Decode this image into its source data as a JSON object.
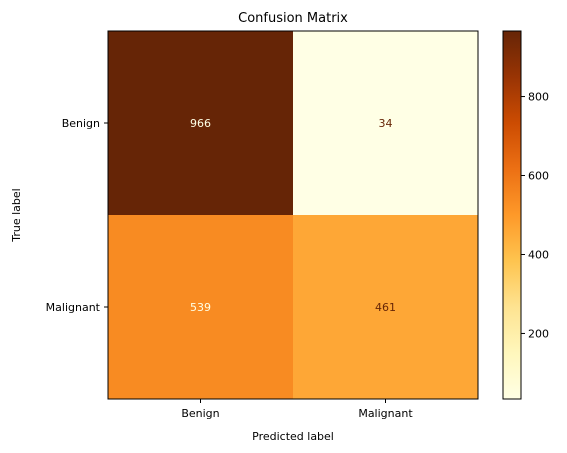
{
  "chart_data": {
    "type": "heatmap",
    "title": "Confusion Matrix",
    "xlabel": "Predicted label",
    "ylabel": "True label",
    "x_categories": [
      "Benign",
      "Malignant"
    ],
    "y_categories": [
      "Benign",
      "Malignant"
    ],
    "matrix": [
      [
        966,
        34
      ],
      [
        539,
        461
      ]
    ],
    "colormap": "YlOrBr",
    "colorbar": {
      "range": [
        34,
        966
      ],
      "ticks": [
        "200",
        "400",
        "600",
        "800"
      ]
    },
    "colors": {
      "high": "#662506",
      "low": "#ffffe5",
      "text_dark": "#662506",
      "text_light": "#ffffe5"
    }
  }
}
